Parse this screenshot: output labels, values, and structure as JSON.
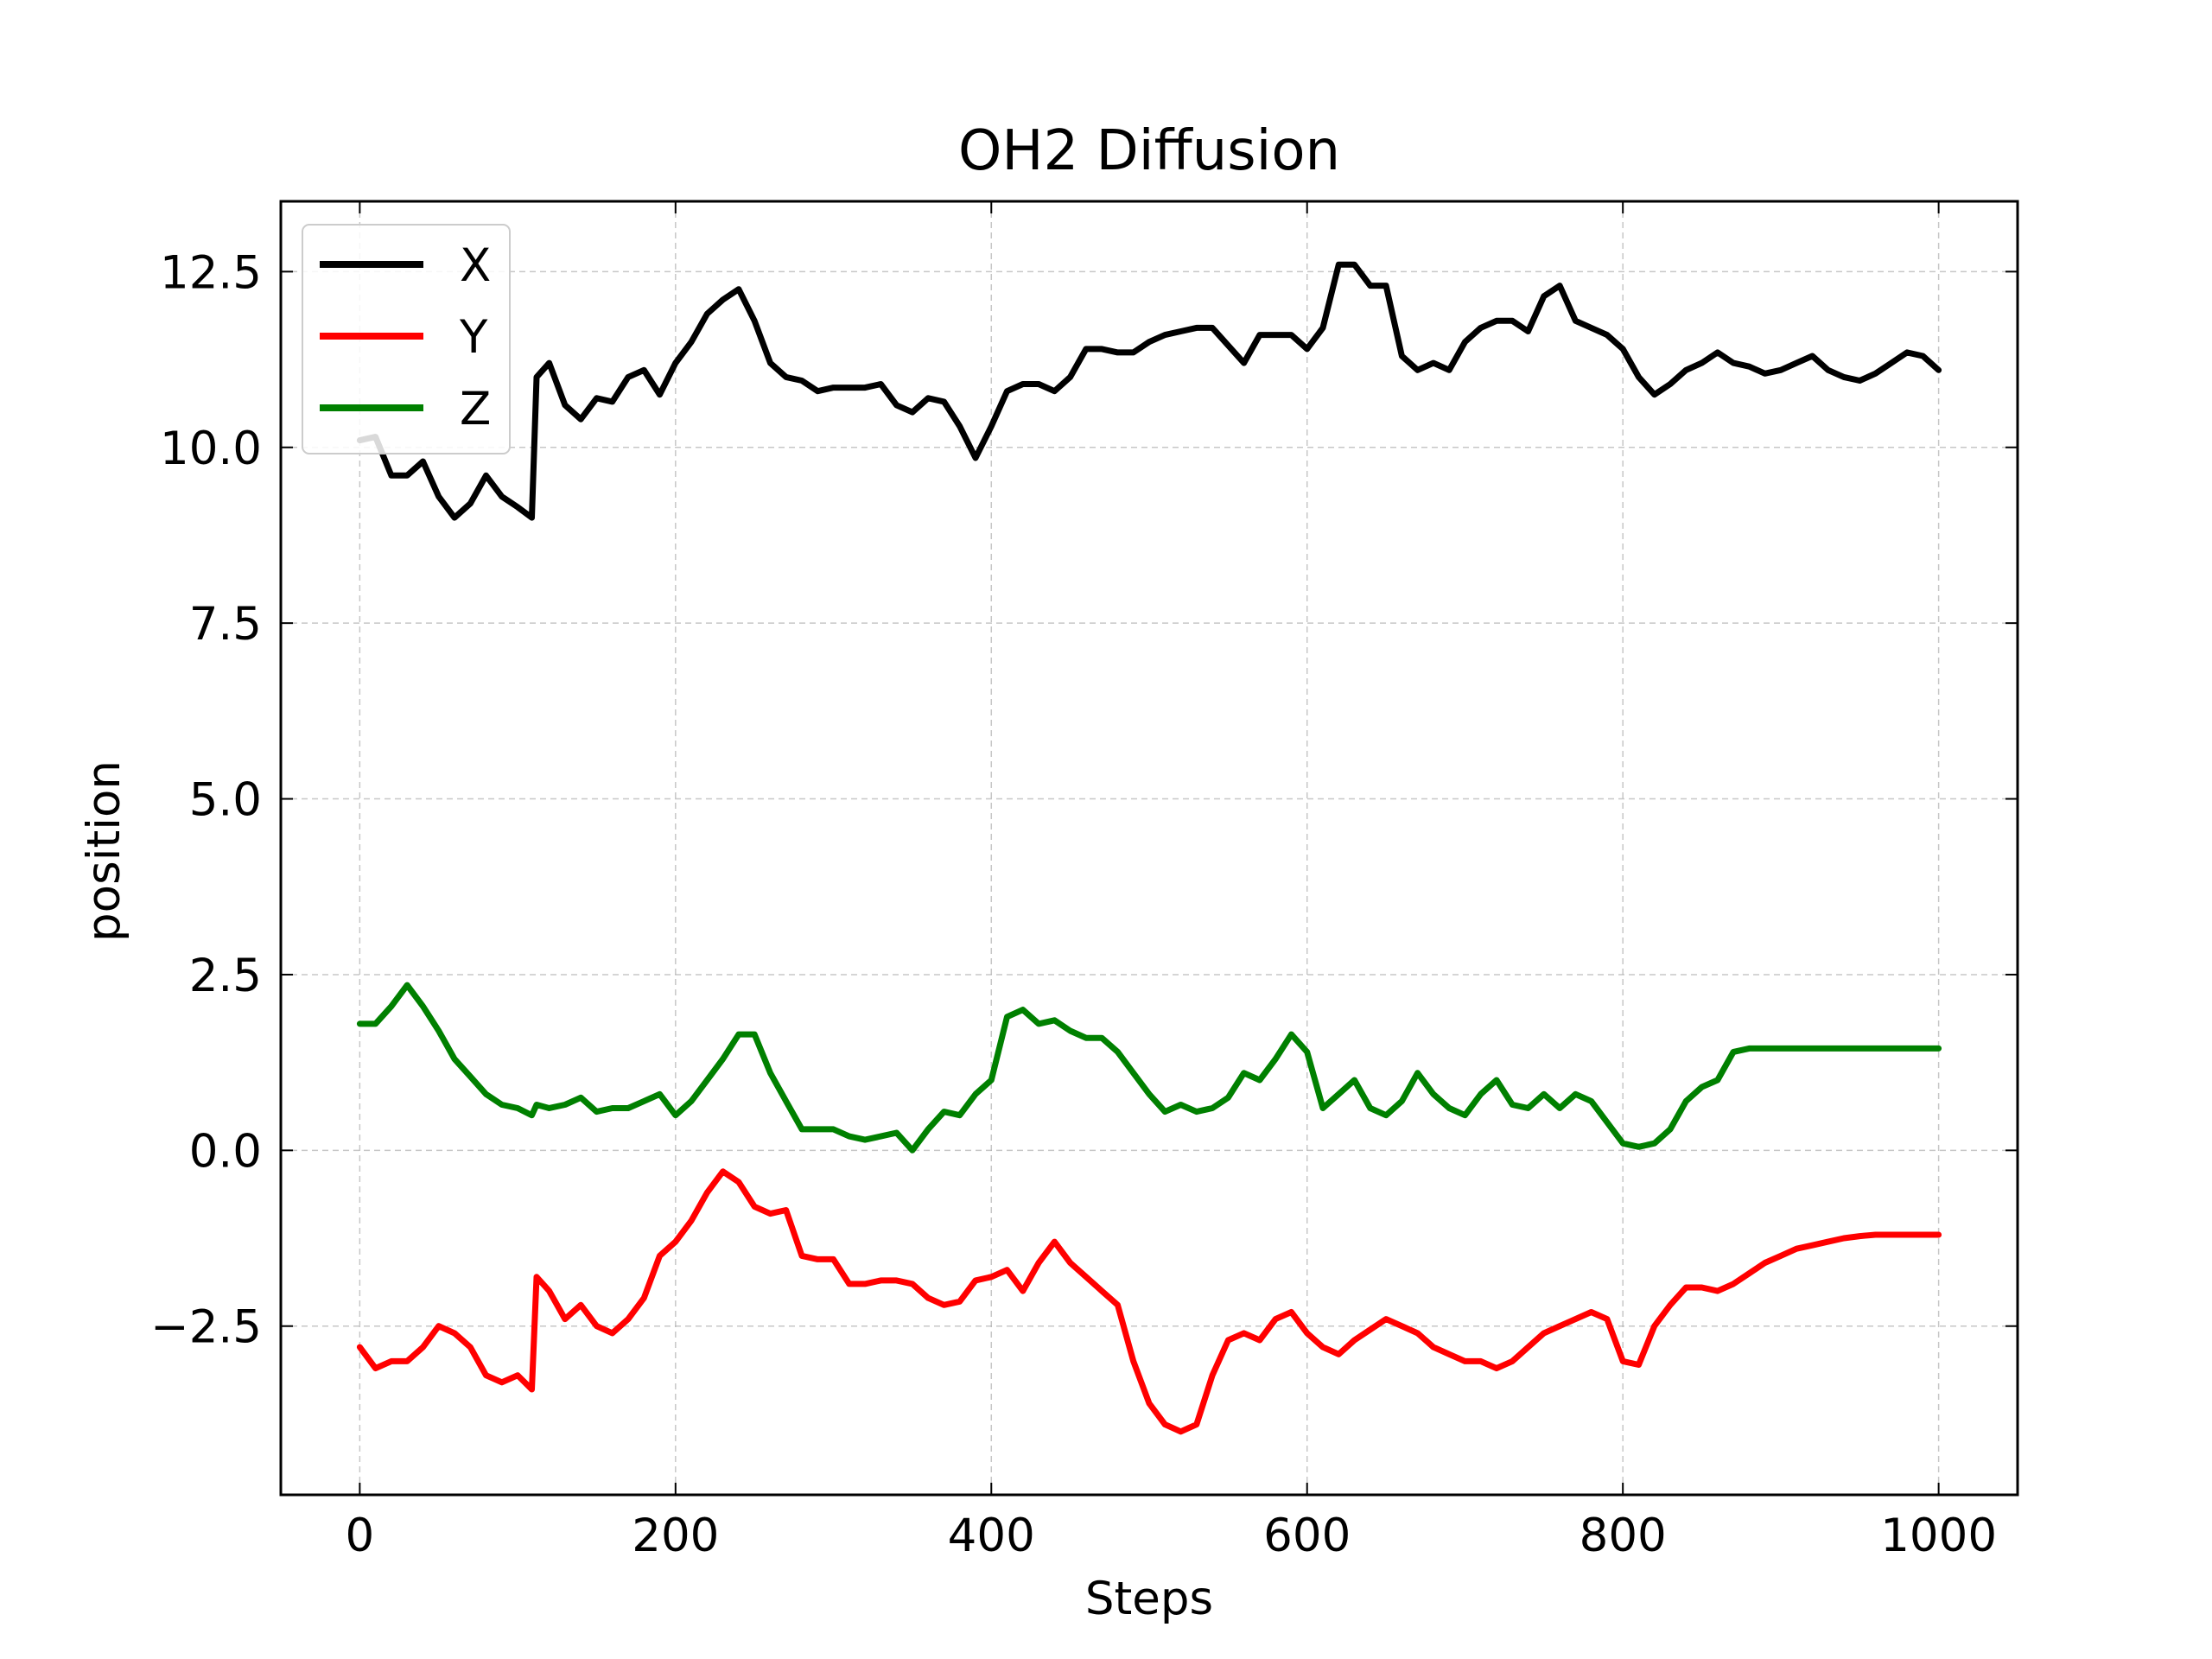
{
  "chart_data": {
    "type": "line",
    "title": "OH2 Diffusion",
    "xlabel": "Steps",
    "ylabel": "position",
    "xlim": [
      -50,
      1050
    ],
    "ylim": [
      -4.9,
      13.5
    ],
    "xticks": [
      0,
      200,
      400,
      600,
      800,
      1000
    ],
    "xtick_labels": [
      "0",
      "200",
      "400",
      "600",
      "800",
      "1000"
    ],
    "yticks": [
      -2.5,
      0.0,
      2.5,
      5.0,
      7.5,
      10.0,
      12.5
    ],
    "ytick_labels": [
      "−2.5",
      "0.0",
      "2.5",
      "5.0",
      "7.5",
      "10.0",
      "12.5"
    ],
    "grid": true,
    "legend_position": "top-left",
    "x": [
      0,
      10,
      20,
      30,
      40,
      50,
      60,
      70,
      80,
      90,
      100,
      109,
      112,
      120,
      130,
      140,
      150,
      160,
      170,
      180,
      190,
      200,
      210,
      220,
      230,
      240,
      250,
      260,
      270,
      280,
      290,
      300,
      310,
      320,
      330,
      340,
      350,
      360,
      370,
      380,
      390,
      400,
      410,
      420,
      430,
      440,
      450,
      460,
      470,
      480,
      490,
      500,
      510,
      520,
      530,
      540,
      550,
      560,
      570,
      580,
      590,
      600,
      610,
      620,
      630,
      640,
      650,
      660,
      670,
      680,
      690,
      700,
      710,
      720,
      730,
      740,
      750,
      760,
      770,
      780,
      790,
      800,
      810,
      820,
      830,
      840,
      850,
      860,
      870,
      880,
      890,
      900,
      910,
      920,
      930,
      940,
      950,
      960,
      970,
      980,
      990,
      1000
    ],
    "series": [
      {
        "name": "X",
        "color": "#000000",
        "values": [
          10.1,
          10.15,
          9.6,
          9.6,
          9.8,
          9.3,
          9.0,
          9.2,
          9.6,
          9.3,
          9.15,
          9.0,
          11.0,
          11.2,
          10.6,
          10.4,
          10.7,
          10.65,
          11.0,
          11.1,
          10.75,
          11.2,
          11.5,
          11.9,
          12.1,
          12.25,
          11.8,
          11.2,
          11.0,
          10.95,
          10.8,
          10.85,
          10.85,
          10.85,
          10.9,
          10.6,
          10.5,
          10.7,
          10.65,
          10.3,
          9.85,
          10.3,
          10.8,
          10.9,
          10.9,
          10.8,
          11.0,
          11.4,
          11.4,
          11.35,
          11.35,
          11.5,
          11.6,
          11.65,
          11.7,
          11.7,
          11.45,
          11.2,
          11.6,
          11.6,
          11.6,
          11.4,
          11.7,
          12.6,
          12.6,
          12.3,
          12.3,
          11.3,
          11.1,
          11.2,
          11.1,
          11.5,
          11.7,
          11.8,
          11.8,
          11.65,
          12.15,
          12.3,
          11.8,
          11.7,
          11.6,
          11.4,
          11.0,
          10.75,
          10.9,
          11.1,
          11.2,
          11.35,
          11.2,
          11.15,
          11.05,
          11.1,
          11.2,
          11.3,
          11.1,
          11.0,
          10.95,
          11.05,
          11.2,
          11.35,
          11.3,
          11.1
        ]
      },
      {
        "name": "Y",
        "color": "#ff0000",
        "values": [
          -2.8,
          -3.1,
          -3.0,
          -3.0,
          -2.8,
          -2.5,
          -2.6,
          -2.8,
          -3.2,
          -3.3,
          -3.2,
          -3.4,
          -1.8,
          -2.0,
          -2.4,
          -2.2,
          -2.5,
          -2.6,
          -2.4,
          -2.1,
          -1.5,
          -1.3,
          -1.0,
          -0.6,
          -0.3,
          -0.45,
          -0.8,
          -0.9,
          -0.85,
          -1.5,
          -1.55,
          -1.55,
          -1.9,
          -1.9,
          -1.85,
          -1.85,
          -1.9,
          -2.1,
          -2.2,
          -2.15,
          -1.85,
          -1.8,
          -1.7,
          -2.0,
          -1.6,
          -1.3,
          -1.6,
          -1.8,
          -2.0,
          -2.2,
          -3.0,
          -3.6,
          -3.9,
          -4.0,
          -3.9,
          -3.2,
          -2.7,
          -2.6,
          -2.7,
          -2.4,
          -2.3,
          -2.6,
          -2.8,
          -2.9,
          -2.7,
          -2.55,
          -2.4,
          -2.5,
          -2.6,
          -2.8,
          -2.9,
          -3.0,
          -3.0,
          -3.1,
          -3.0,
          -2.8,
          -2.6,
          -2.5,
          -2.4,
          -2.3,
          -2.4,
          -3.0,
          -3.05,
          -2.5,
          -2.2,
          -1.95,
          -1.95,
          -2.0,
          -1.9,
          -1.75,
          -1.6,
          -1.5,
          -1.4,
          -1.35,
          -1.3,
          -1.25,
          -1.22,
          -1.2,
          -1.2,
          -1.2,
          -1.2,
          -1.2
        ]
      },
      {
        "name": "Z",
        "color": "#008000",
        "values": [
          1.8,
          1.8,
          2.05,
          2.35,
          2.05,
          1.7,
          1.3,
          1.05,
          0.8,
          0.65,
          0.6,
          0.5,
          0.65,
          0.6,
          0.65,
          0.75,
          0.55,
          0.6,
          0.6,
          0.7,
          0.8,
          0.5,
          0.7,
          1.0,
          1.3,
          1.65,
          1.65,
          1.1,
          0.7,
          0.3,
          0.3,
          0.3,
          0.2,
          0.15,
          0.2,
          0.25,
          0.0,
          0.3,
          0.55,
          0.5,
          0.8,
          1.0,
          1.9,
          2.0,
          1.8,
          1.85,
          1.7,
          1.6,
          1.6,
          1.4,
          1.1,
          0.8,
          0.55,
          0.65,
          0.55,
          0.6,
          0.75,
          1.1,
          1.0,
          1.3,
          1.65,
          1.4,
          0.6,
          0.8,
          1.0,
          0.6,
          0.5,
          0.7,
          1.1,
          0.8,
          0.6,
          0.5,
          0.8,
          1.0,
          0.65,
          0.6,
          0.8,
          0.6,
          0.8,
          0.7,
          0.4,
          0.1,
          0.05,
          0.1,
          0.3,
          0.7,
          0.9,
          1.0,
          1.4,
          1.45,
          1.45,
          1.45,
          1.45,
          1.45,
          1.45,
          1.45,
          1.45,
          1.45,
          1.45,
          1.45,
          1.45,
          1.45
        ]
      }
    ]
  }
}
